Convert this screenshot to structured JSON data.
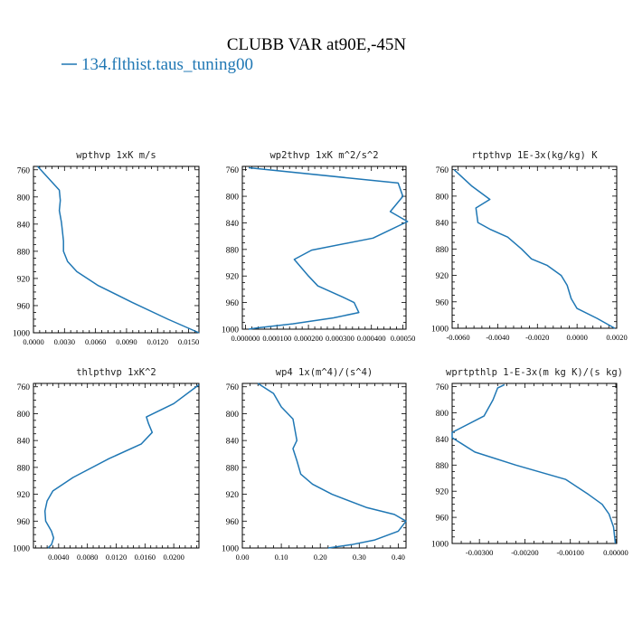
{
  "figure": {
    "title": "CLUBB VAR at90E,-45N",
    "legend": {
      "series_name": "134.flthist.taus_tuning00",
      "color": "#1f77b4"
    }
  },
  "chart_data": [
    {
      "type": "line",
      "title": "wpthvp  1xK m/s",
      "xlim": [
        0.0,
        0.016
      ],
      "ylim": [
        1000,
        755
      ],
      "yticks": [
        760,
        800,
        840,
        880,
        920,
        960,
        1000
      ],
      "xticks": [
        "0.0000",
        "0.0030",
        "0.0060",
        "0.0090",
        "0.0120",
        "0.0150"
      ],
      "xtick_values": [
        0.0,
        0.003,
        0.006,
        0.009,
        0.012,
        0.015
      ],
      "series": [
        {
          "name": "134.flthist.taus_tuning00",
          "color": "#1f77b4",
          "x": [
            0.0004,
            0.0013,
            0.0025,
            0.0026,
            0.0025,
            0.0027,
            0.0028,
            0.0029,
            0.0029,
            0.0033,
            0.0042,
            0.0062,
            0.0095,
            0.013,
            0.016
          ],
          "y": [
            755,
            770,
            790,
            805,
            820,
            837,
            850,
            865,
            880,
            895,
            910,
            930,
            955,
            980,
            1000
          ]
        }
      ]
    },
    {
      "type": "line",
      "title": "wp2thvp  1xK m^2/s^2",
      "xlim": [
        -1e-05,
        0.00051
      ],
      "ylim": [
        1000,
        755
      ],
      "yticks": [
        760,
        800,
        840,
        880,
        920,
        960,
        1000
      ],
      "xticks": [
        "0.000000",
        "0.000100",
        "0.000200",
        "0.000300",
        "0.000400",
        "0.00050"
      ],
      "xtick_values": [
        0.0,
        0.0001,
        0.0002,
        0.0003,
        0.0004,
        0.0005
      ],
      "series": [
        {
          "name": "134.flthist.taus_tuning00",
          "color": "#1f77b4",
          "x": [
            1e-05,
            0.000485,
            0.0005,
            0.00046,
            0.000515,
            0.000405,
            0.00021,
            0.000155,
            0.0002,
            0.00023,
            0.00031,
            0.000345,
            0.00036,
            0.00028,
            0.00015,
            4e-05,
            1e-05
          ],
          "y": [
            757,
            780,
            800,
            823,
            838,
            863,
            881,
            895,
            920,
            935,
            952,
            960,
            975,
            983,
            992,
            998,
            1000
          ]
        }
      ]
    },
    {
      "type": "line",
      "title": "rtpthvp  1E-3x(kg/kg) K",
      "xlim": [
        -0.0063,
        0.002
      ],
      "ylim": [
        1000,
        755
      ],
      "yticks": [
        760,
        800,
        840,
        880,
        920,
        960,
        1000
      ],
      "xticks": [
        "-0.0060",
        "-0.0040",
        "-0.0020",
        "0.0000",
        "0.0020"
      ],
      "xtick_values": [
        -0.006,
        -0.004,
        -0.002,
        0.0,
        0.002
      ],
      "series": [
        {
          "name": "134.flthist.taus_tuning00",
          "color": "#1f77b4",
          "x": [
            -0.0062,
            -0.0053,
            -0.0044,
            -0.0051,
            -0.005,
            -0.0044,
            -0.0035,
            -0.0028,
            -0.0023,
            -0.0015,
            -0.0008,
            -0.0005,
            -0.0003,
            0.0,
            0.001,
            0.0019
          ],
          "y": [
            760,
            785,
            805,
            818,
            840,
            850,
            862,
            880,
            895,
            905,
            920,
            935,
            955,
            970,
            985,
            1000
          ]
        }
      ]
    },
    {
      "type": "line",
      "title": "thlpthvp  1xK^2",
      "xlim": [
        0.0005,
        0.0235
      ],
      "ylim": [
        1000,
        755
      ],
      "yticks": [
        760,
        800,
        840,
        880,
        920,
        960,
        1000
      ],
      "xticks": [
        "0.0040",
        "0.0080",
        "0.0120",
        "0.0160",
        "0.0200"
      ],
      "xtick_values": [
        0.004,
        0.008,
        0.012,
        0.016,
        0.02
      ],
      "series": [
        {
          "name": "134.flthist.taus_tuning00",
          "color": "#1f77b4",
          "x": [
            0.0235,
            0.02,
            0.0162,
            0.0165,
            0.017,
            0.0155,
            0.011,
            0.006,
            0.0032,
            0.0024,
            0.0021,
            0.0022,
            0.003,
            0.0033,
            0.003,
            0.0025
          ],
          "y": [
            757,
            785,
            805,
            815,
            828,
            845,
            867,
            895,
            915,
            930,
            945,
            960,
            975,
            985,
            995,
            1000
          ]
        }
      ]
    },
    {
      "type": "line",
      "title": "wp4  1x(m^4)/(s^4)",
      "xlim": [
        0.0,
        0.42
      ],
      "ylim": [
        1000,
        755
      ],
      "yticks": [
        760,
        800,
        840,
        880,
        920,
        960,
        1000
      ],
      "xticks": [
        "0.00",
        "0.10",
        "0.20",
        "0.30",
        "0.40"
      ],
      "xtick_values": [
        0.0,
        0.1,
        0.2,
        0.3,
        0.4
      ],
      "series": [
        {
          "name": "134.flthist.taus_tuning00",
          "color": "#1f77b4",
          "x": [
            0.04,
            0.08,
            0.1,
            0.13,
            0.14,
            0.13,
            0.14,
            0.15,
            0.18,
            0.23,
            0.32,
            0.39,
            0.42,
            0.4,
            0.34,
            0.28,
            0.22
          ],
          "y": [
            755,
            770,
            790,
            808,
            840,
            852,
            870,
            890,
            905,
            920,
            940,
            950,
            960,
            975,
            988,
            995,
            1000
          ]
        }
      ]
    },
    {
      "type": "line",
      "title": "wprtpthlp  1-E-3x(m kg K)/(s kg)",
      "xlim": [
        -0.0036,
        2e-05
      ],
      "ylim": [
        1000,
        755
      ],
      "yticks": [
        760,
        800,
        840,
        880,
        920,
        960,
        1000
      ],
      "xticks": [
        "-0.00300",
        "-0.00200",
        "-0.00100",
        "0.00000"
      ],
      "xtick_values": [
        -0.003,
        -0.002,
        -0.001,
        0.0
      ],
      "series": [
        {
          "name": "134.flthist.taus_tuning00",
          "color": "#1f77b4",
          "x": [
            -0.00245,
            -0.0026,
            -0.0027,
            -0.0029,
            -0.0036,
            -0.0036,
            -0.0031,
            -0.0022,
            -0.0011,
            -0.0006,
            -0.0003,
            -0.00015,
            -5e-05,
            -1e-05
          ],
          "y": [
            757,
            762,
            780,
            805,
            830,
            838,
            860,
            880,
            902,
            925,
            940,
            955,
            975,
            1000
          ]
        }
      ]
    }
  ]
}
